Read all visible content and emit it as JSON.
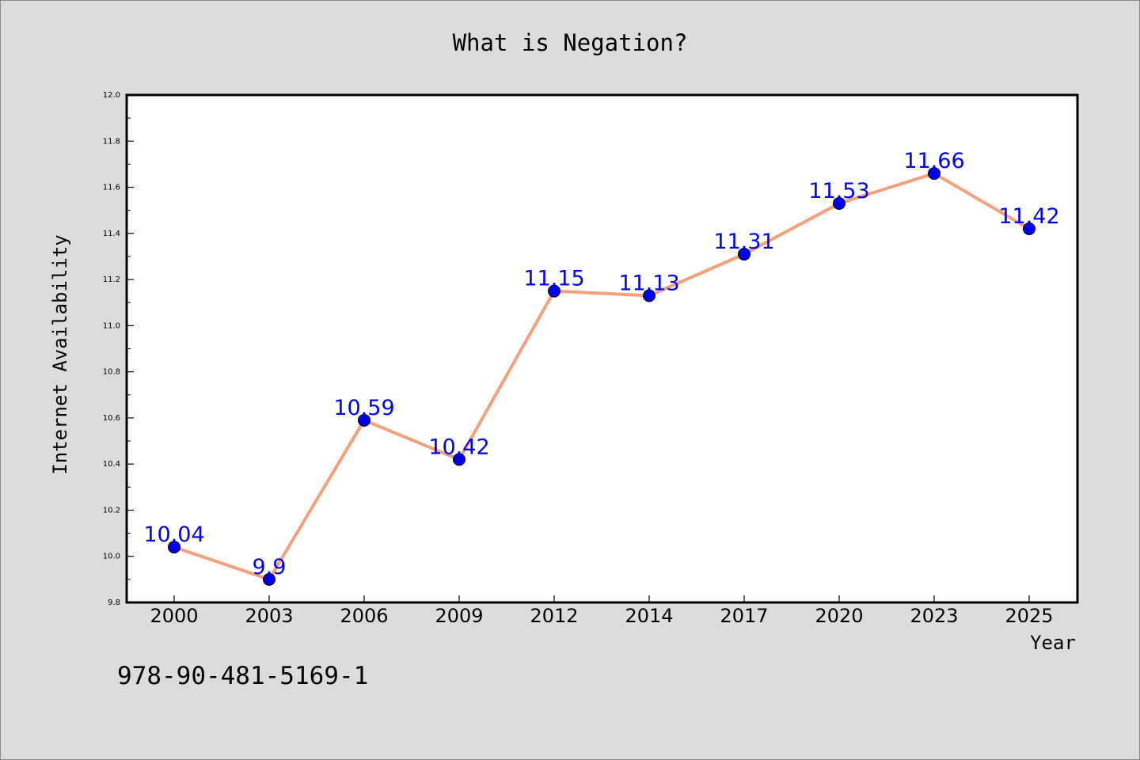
{
  "chart_data": {
    "type": "line",
    "title": "What is Negation?",
    "xlabel": "Year",
    "ylabel": "Internet Availability",
    "categories": [
      "2000",
      "2003",
      "2006",
      "2009",
      "2012",
      "2014",
      "2017",
      "2020",
      "2023",
      "2025"
    ],
    "series": [
      {
        "values": [
          10.04,
          9.9,
          10.59,
          10.42,
          11.15,
          11.13,
          11.31,
          11.53,
          11.66,
          11.42
        ],
        "labels": [
          "10.04",
          "9.9",
          "10.59",
          "10.42",
          "11.15",
          "11.13",
          "11.31",
          "11.53",
          "11.66",
          "11.42"
        ],
        "line_color": "#f4a07a",
        "marker_color": "#0000ee",
        "label_color": "#0000ee"
      }
    ],
    "ylim": [
      9.8,
      12.0
    ],
    "yticks": [
      "9.8",
      "10.0",
      "10.2",
      "10.4",
      "10.6",
      "10.8",
      "11.0",
      "11.2",
      "11.4",
      "11.6",
      "11.8",
      "12.0"
    ],
    "grid": false,
    "legend": "none"
  },
  "footer": {
    "isbn": "978-90-481-5169-1"
  },
  "colors": {
    "background": "#dcdcdc",
    "plot_background": "#ffffff"
  }
}
